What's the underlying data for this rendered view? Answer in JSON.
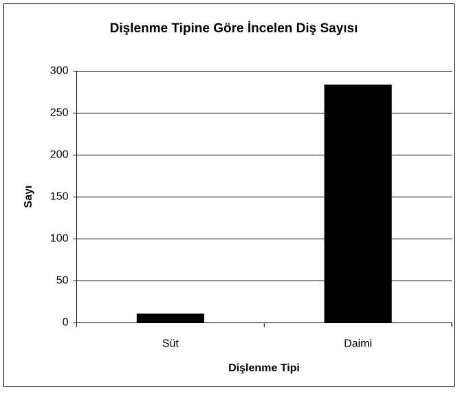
{
  "chart_data": {
    "type": "bar",
    "title": "Dişlenme Tipine Göre İncelen Diş Sayısı",
    "x_label": "Dişlenme Tipi",
    "y_label": "Sayı",
    "categories": [
      "Süt",
      "Daimi"
    ],
    "values": [
      11,
      284
    ],
    "color": "#000000",
    "ylim": [
      0,
      300
    ],
    "yticks": [
      0,
      50,
      100,
      150,
      200,
      250,
      300
    ],
    "grid": true
  }
}
